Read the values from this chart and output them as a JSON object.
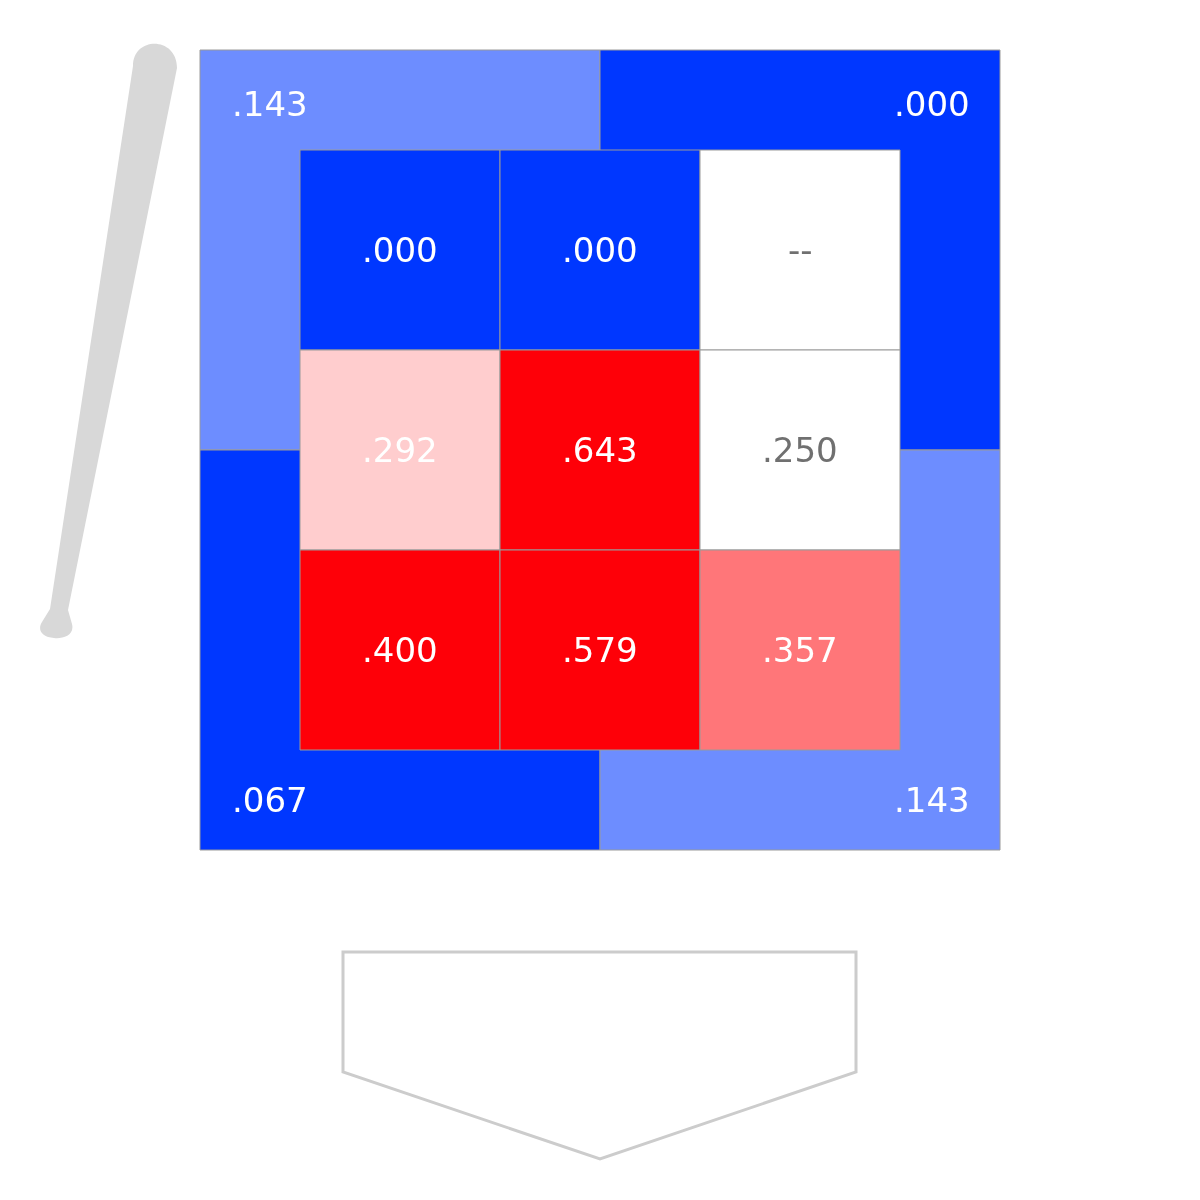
{
  "chart_data": [
    {
      "type": "other",
      "categories": [
        null,
        null,
        null,
        null
      ],
      "values": [
        0.143,
        0.0,
        0.067,
        0.143
      ],
      "value_labels": [
        ".143",
        ".000",
        ".067",
        ".143"
      ],
      "data_labels": true
    },
    {
      "type": "heatmap",
      "categories": [
        null,
        null,
        null
      ],
      "y_categories": [
        null,
        null,
        null
      ],
      "cells": [
        [
          0.0,
          0.0,
          null
        ],
        [
          0.292,
          0.643,
          0.25
        ],
        [
          0.4,
          0.579,
          0.357
        ]
      ],
      "cell_labels": [
        [
          ".000",
          ".000",
          "--"
        ],
        [
          ".292",
          ".643",
          ".250"
        ],
        [
          ".400",
          ".579",
          ".357"
        ]
      ],
      "data_labels": true
    }
  ]
}
